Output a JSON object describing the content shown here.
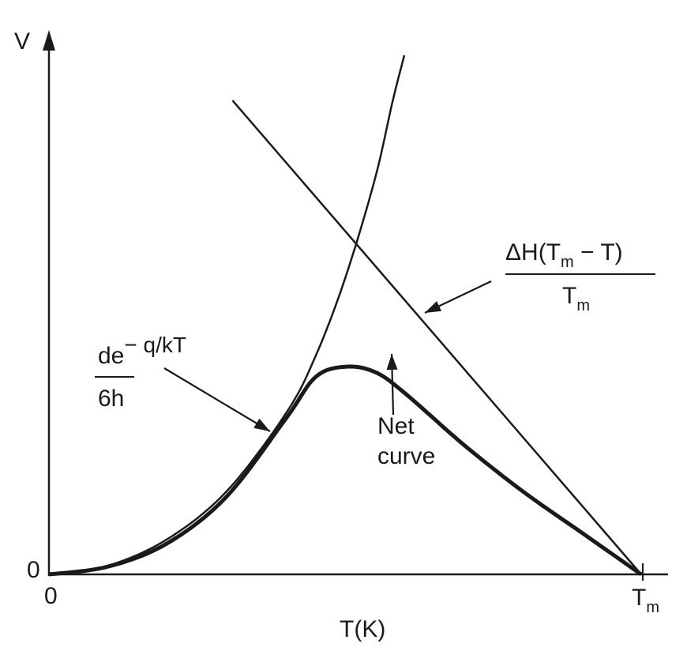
{
  "chart_data": {
    "type": "line",
    "title": "",
    "xlabel": "T(K)",
    "ylabel": "V",
    "x_ticks": {
      "origin": "0",
      "end_main": "T",
      "end_sub": "m"
    },
    "y_ticks": {
      "origin": "0"
    },
    "xlim": [
      0,
      1
    ],
    "ylim": [
      0,
      1
    ],
    "grid": false,
    "series": [
      {
        "name": "",
        "label_top": "de",
        "label_sup": "− q/kT",
        "label_bottom": "6h",
        "points": [
          [
            0.0,
            0.0
          ],
          [
            0.1,
            0.017
          ],
          [
            0.2,
            0.068
          ],
          [
            0.3,
            0.16
          ],
          [
            0.4,
            0.31
          ],
          [
            0.45,
            0.42
          ],
          [
            0.5,
            0.57
          ],
          [
            0.55,
            0.76
          ],
          [
            0.58,
            0.91
          ],
          [
            0.6,
            1.0
          ]
        ]
      },
      {
        "name": "",
        "label_top": "ΔH(T",
        "label_top_sub": "m",
        "label_top_tail": " − T)",
        "label_bottom": "T",
        "label_bottom_sub": "m",
        "points": [
          [
            0.31,
            0.913
          ],
          [
            1.0,
            0.0
          ]
        ]
      },
      {
        "name": "",
        "label_line1": "Net",
        "label_line2": "curve",
        "points": [
          [
            0.0,
            0.0
          ],
          [
            0.1,
            0.015
          ],
          [
            0.2,
            0.06
          ],
          [
            0.3,
            0.15
          ],
          [
            0.4,
            0.3
          ],
          [
            0.45,
            0.38
          ],
          [
            0.5,
            0.4
          ],
          [
            0.55,
            0.39
          ],
          [
            0.6,
            0.35
          ],
          [
            0.7,
            0.25
          ],
          [
            0.8,
            0.16
          ],
          [
            0.9,
            0.08
          ],
          [
            1.0,
            0.0
          ]
        ]
      }
    ]
  }
}
